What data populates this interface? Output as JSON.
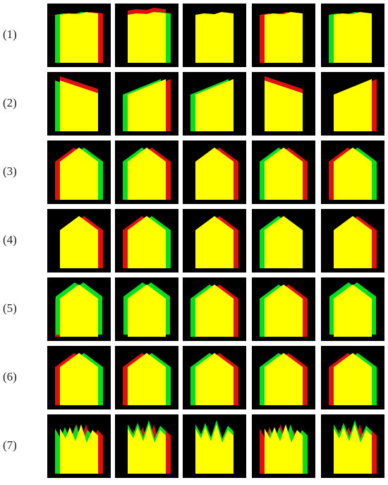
{
  "figure": {
    "rows": [
      {
        "label": "(1)",
        "tiles": [
          {
            "shape": "flat",
            "lean": 0,
            "green_side": "left",
            "red_side": "right"
          },
          {
            "shape": "flat",
            "lean": 0,
            "green_side": "right",
            "red_side": "top"
          },
          {
            "shape": "flat",
            "lean": 0,
            "green_side": "none",
            "red_side": "none"
          },
          {
            "shape": "flat",
            "lean": 0,
            "green_side": "none",
            "red_side": "left"
          },
          {
            "shape": "flat",
            "lean": 0,
            "green_side": "left",
            "red_side": "none"
          }
        ]
      },
      {
        "label": "(2)",
        "tiles": [
          {
            "shape": "slope",
            "lean": -1,
            "green_side": "left",
            "red_side": "top"
          },
          {
            "shape": "slope",
            "lean": 1,
            "green_side": "left",
            "red_side": "right"
          },
          {
            "shape": "slope",
            "lean": 1,
            "green_side": "left",
            "red_side": "none"
          },
          {
            "shape": "slope",
            "lean": -1,
            "green_side": "none",
            "red_side": "top"
          },
          {
            "shape": "slope",
            "lean": 1,
            "green_side": "none",
            "red_side": "right"
          }
        ]
      },
      {
        "label": "(3)",
        "tiles": [
          {
            "shape": "gable",
            "lean": 0,
            "green_side": "right",
            "red_side": "left"
          },
          {
            "shape": "gable",
            "lean": 0,
            "green_side": "left",
            "red_side": "right"
          },
          {
            "shape": "gable",
            "lean": 0,
            "green_side": "none",
            "red_side": "right"
          },
          {
            "shape": "gable",
            "lean": 0,
            "green_side": "left",
            "red_side": "right"
          },
          {
            "shape": "gable",
            "lean": 0,
            "green_side": "right",
            "red_side": "left"
          }
        ]
      },
      {
        "label": "(4)",
        "tiles": [
          {
            "shape": "gable",
            "lean": 0,
            "green_side": "none",
            "red_side": "right"
          },
          {
            "shape": "gable",
            "lean": 0,
            "green_side": "right",
            "red_side": "left"
          },
          {
            "shape": "gable",
            "lean": 0,
            "green_side": "none",
            "red_side": "right"
          },
          {
            "shape": "gable",
            "lean": 0,
            "green_side": "left",
            "red_side": "none"
          },
          {
            "shape": "gable",
            "lean": 0,
            "green_side": "none",
            "red_side": "right"
          }
        ]
      },
      {
        "label": "(5)",
        "tiles": [
          {
            "shape": "gable",
            "lean": 0,
            "green_side": "both",
            "red_side": "left"
          },
          {
            "shape": "gable",
            "lean": 0,
            "green_side": "both",
            "red_side": "none"
          },
          {
            "shape": "gable",
            "lean": 0,
            "green_side": "left",
            "red_side": "right"
          },
          {
            "shape": "gable",
            "lean": 0,
            "green_side": "left",
            "red_side": "right"
          },
          {
            "shape": "gable",
            "lean": 0,
            "green_side": "both",
            "red_side": "none"
          }
        ]
      },
      {
        "label": "(6)",
        "tiles": [
          {
            "shape": "gable",
            "lean": 0,
            "green_side": "right",
            "red_side": "left"
          },
          {
            "shape": "gable",
            "lean": 0,
            "green_side": "right",
            "red_side": "left"
          },
          {
            "shape": "gable",
            "lean": 0,
            "green_side": "left",
            "red_side": "right"
          },
          {
            "shape": "gable",
            "lean": 0,
            "green_side": "left",
            "red_side": "right"
          },
          {
            "shape": "gable",
            "lean": 0,
            "green_side": "right",
            "red_side": "left"
          }
        ]
      },
      {
        "label": "(7)",
        "tiles": [
          {
            "shape": "jagged",
            "lean": 0,
            "green_side": "left",
            "red_side": "right"
          },
          {
            "shape": "jagged",
            "lean": 0,
            "green_side": "top",
            "red_side": "right"
          },
          {
            "shape": "jagged",
            "lean": 0,
            "green_side": "top",
            "red_side": "none"
          },
          {
            "shape": "jagged",
            "lean": 0,
            "green_side": "right",
            "red_side": "left"
          },
          {
            "shape": "jagged",
            "lean": 0,
            "green_side": "top",
            "red_side": "right"
          }
        ]
      }
    ],
    "colors": {
      "background": "#000000",
      "yellow": "#ffff00",
      "green": "#00e020",
      "red": "#e01010"
    }
  }
}
